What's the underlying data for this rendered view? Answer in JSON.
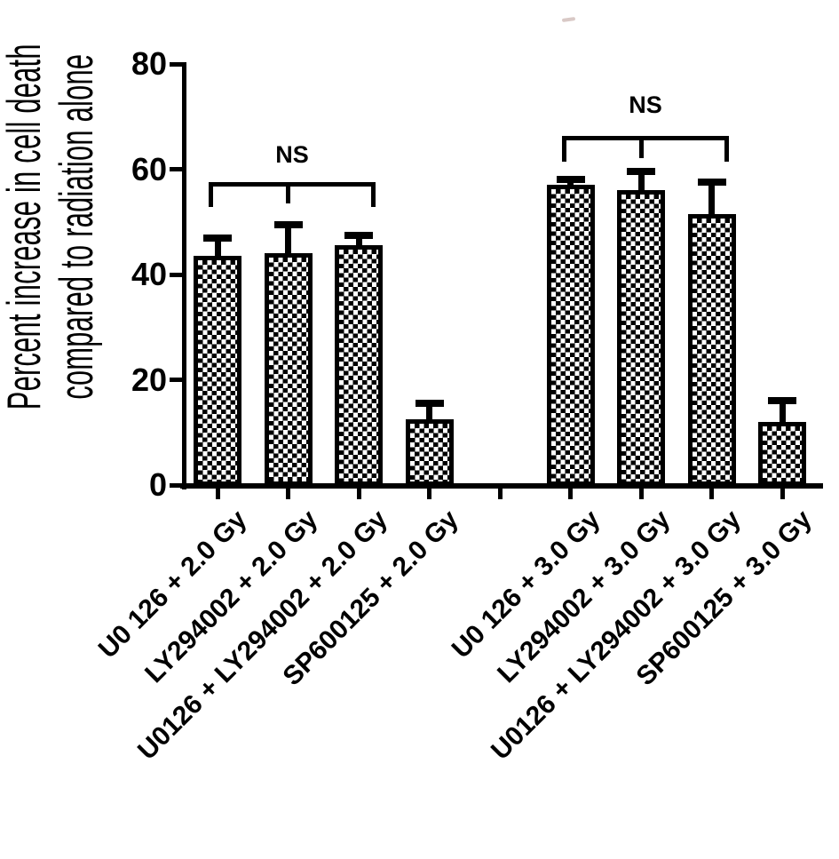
{
  "figure": {
    "background": "#ffffff",
    "ink_color": "#000000",
    "bar_pattern": "black-white-checkerboard"
  },
  "chart_data": {
    "type": "bar",
    "title": "",
    "xlabel": "",
    "ylabel_lines": [
      "Percent increase in cell death",
      "compared to radiation alone"
    ],
    "ylim": [
      0,
      80
    ],
    "yticks": [
      0,
      20,
      40,
      60,
      80
    ],
    "grid": false,
    "legend": false,
    "categories": [
      "U0 126 + 2.0 Gy",
      "LY294002 + 2.0 Gy",
      "U0126 + LY294002 + 2.0 Gy",
      "SP600125 + 2.0 Gy",
      "U0 126 + 3.0 Gy",
      "LY294002 + 3.0 Gy",
      "U0126 + LY294002 + 3.0 Gy",
      "SP600125 + 3.0 Gy"
    ],
    "values": [
      43.5,
      44,
      45.5,
      12.5,
      57,
      56,
      51.5,
      12
    ],
    "errors_plus": [
      3.5,
      5.5,
      2,
      3,
      1,
      3.5,
      6,
      4
    ],
    "annotations": [
      {
        "text": "NS",
        "spans_categories": [
          "U0 126 + 2.0 Gy",
          "LY294002 + 2.0 Gy",
          "U0126 + LY294002 + 2.0 Gy"
        ]
      },
      {
        "text": "NS",
        "spans_categories": [
          "U0 126 + 3.0 Gy",
          "LY294002 + 3.0 Gy",
          "U0126 + LY294002 + 3.0 Gy"
        ]
      }
    ]
  }
}
